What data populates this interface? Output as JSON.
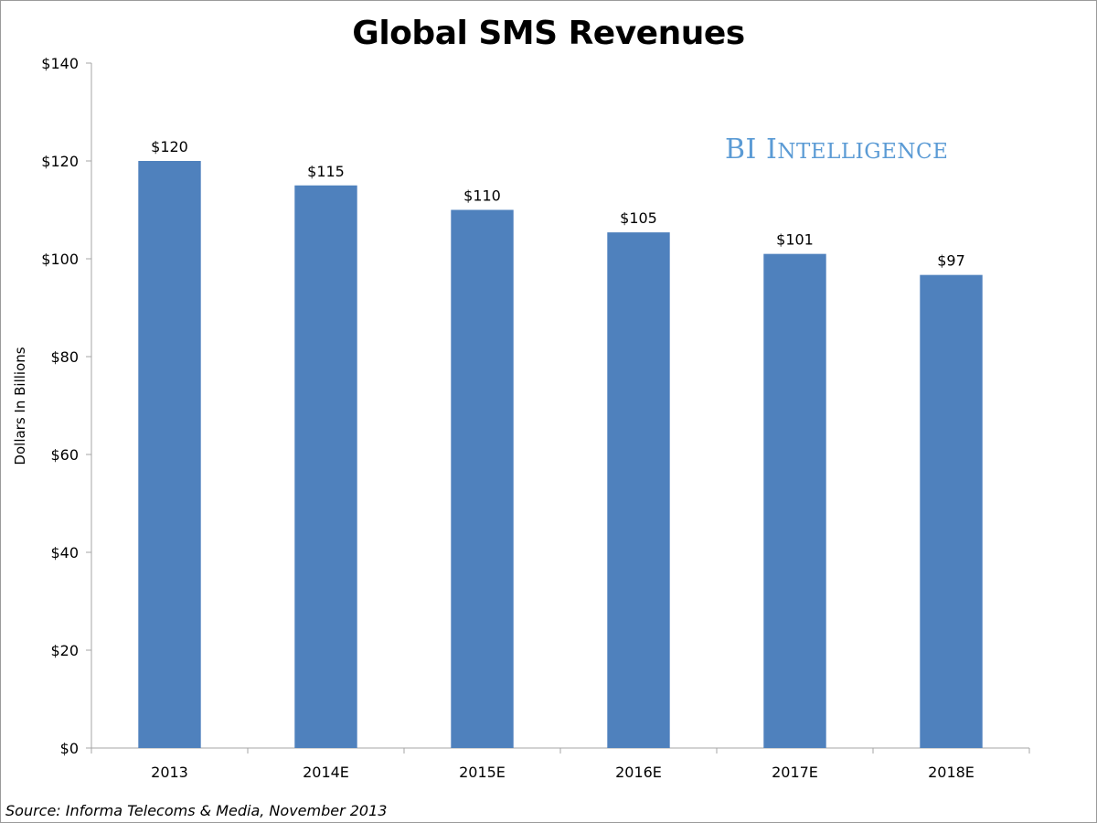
{
  "chart_data": {
    "type": "bar",
    "title": "Global SMS Revenues",
    "xlabel": "",
    "ylabel": "Dollars In Billions",
    "categories": [
      "2013",
      "2014E",
      "2015E",
      "2016E",
      "2017E",
      "2018E"
    ],
    "values": [
      120,
      115,
      110,
      105.4,
      101,
      96.7
    ],
    "data_labels": [
      "$120",
      "$115",
      "$110",
      "$105",
      "$101",
      "$97"
    ],
    "ylim": [
      0,
      140
    ],
    "yticks": [
      0,
      20,
      40,
      60,
      80,
      100,
      120,
      140
    ],
    "ytick_labels": [
      "$0",
      "$20",
      "$40",
      "$60",
      "$80",
      "$100",
      "$120",
      "$140"
    ],
    "grid": false,
    "legend": "none",
    "bar_color": "#4f81bd"
  },
  "watermark": {
    "first": "BI",
    "second_initial": "I",
    "second_rest": "NTELLIGENCE",
    "color": "#5b9bd5"
  },
  "source": "Source: Informa Telecoms & Media, November 2013"
}
